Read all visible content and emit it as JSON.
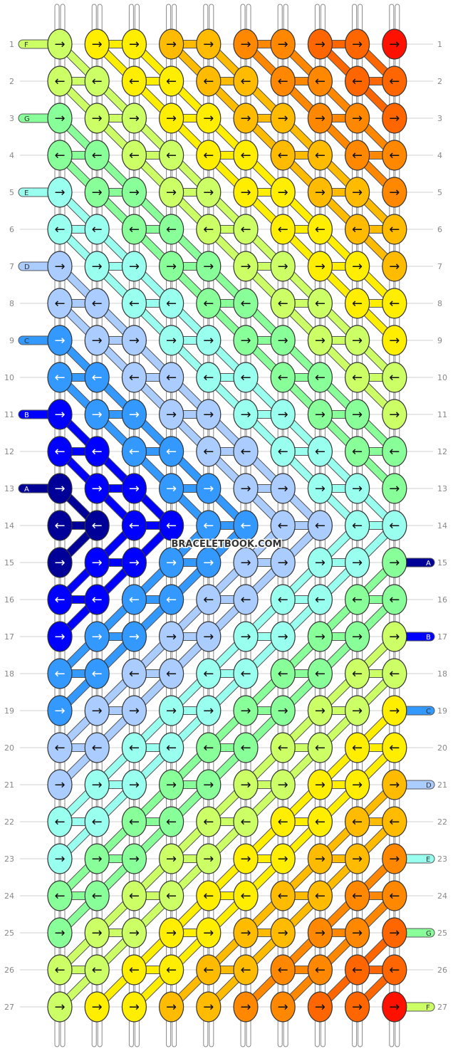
{
  "watermark": "BRACELETBOOK.COM",
  "row_labels": [
    "1",
    "2",
    "3",
    "4",
    "5",
    "6",
    "7",
    "8",
    "9",
    "10",
    "11",
    "12",
    "13",
    "14",
    "15",
    "16",
    "17",
    "18",
    "19",
    "20",
    "21",
    "22",
    "23",
    "24",
    "25",
    "26",
    "27"
  ],
  "string_labels": {
    "left": [
      {
        "row": 1,
        "text": "F",
        "color": "#ccff66"
      },
      {
        "row": 3,
        "text": "G",
        "color": "#88ff99"
      },
      {
        "row": 5,
        "text": "E",
        "color": "#99ffee"
      },
      {
        "row": 7,
        "text": "D",
        "color": "#aaccff"
      },
      {
        "row": 9,
        "text": "C",
        "color": "#3399ff"
      },
      {
        "row": 11,
        "text": "B",
        "color": "#0000ff"
      },
      {
        "row": 13,
        "text": "A",
        "color": "#000099"
      }
    ],
    "right": [
      {
        "row": 15,
        "text": "A",
        "color": "#000099"
      },
      {
        "row": 17,
        "text": "B",
        "color": "#0000ff"
      },
      {
        "row": 19,
        "text": "C",
        "color": "#3399ff"
      },
      {
        "row": 21,
        "text": "D",
        "color": "#aaccff"
      },
      {
        "row": 23,
        "text": "E",
        "color": "#99ffee"
      },
      {
        "row": 25,
        "text": "G",
        "color": "#88ff99"
      },
      {
        "row": 27,
        "text": "F",
        "color": "#ccff66"
      }
    ]
  },
  "palette": {
    "A": "#000099",
    "B": "#0000ff",
    "C": "#3399ff",
    "D": "#aaccff",
    "E": "#99ffee",
    "G": "#88ff99",
    "F": "#ccff66",
    "Y": "#ffee00",
    "O": "#ffbb00",
    "R": "#ff8800",
    "S": "#ff6600",
    "X": "#ff1100"
  },
  "knots": {
    "columns": 10,
    "rows": [
      {
        "row": 1,
        "arrow": "→",
        "colors": [
          "F",
          "Y",
          "Y",
          "O",
          "O",
          "R",
          "R",
          "S",
          "S",
          "X"
        ]
      },
      {
        "row": 2,
        "arrow": "←",
        "colors": [
          "F",
          "F",
          "Y",
          "Y",
          "O",
          "O",
          "R",
          "R",
          "S",
          "S"
        ]
      },
      {
        "row": 3,
        "arrow": "→",
        "colors": [
          "G",
          "F",
          "F",
          "Y",
          "Y",
          "O",
          "O",
          "R",
          "R",
          "S"
        ]
      },
      {
        "row": 4,
        "arrow": "←",
        "colors": [
          "G",
          "G",
          "F",
          "F",
          "Y",
          "Y",
          "O",
          "O",
          "R",
          "R"
        ]
      },
      {
        "row": 5,
        "arrow": "→",
        "colors": [
          "E",
          "G",
          "G",
          "F",
          "F",
          "Y",
          "Y",
          "O",
          "O",
          "R"
        ]
      },
      {
        "row": 6,
        "arrow": "←",
        "colors": [
          "E",
          "E",
          "G",
          "G",
          "F",
          "F",
          "Y",
          "Y",
          "O",
          "O"
        ]
      },
      {
        "row": 7,
        "arrow": "→",
        "colors": [
          "D",
          "E",
          "E",
          "G",
          "G",
          "F",
          "F",
          "Y",
          "Y",
          "O"
        ]
      },
      {
        "row": 8,
        "arrow": "←",
        "colors": [
          "D",
          "D",
          "E",
          "E",
          "G",
          "G",
          "F",
          "F",
          "Y",
          "Y"
        ]
      },
      {
        "row": 9,
        "arrow": "→",
        "colors": [
          "C",
          "D",
          "D",
          "E",
          "E",
          "G",
          "G",
          "F",
          "F",
          "Y"
        ]
      },
      {
        "row": 10,
        "arrow": "←",
        "colors": [
          "C",
          "C",
          "D",
          "D",
          "E",
          "E",
          "G",
          "G",
          "F",
          "F"
        ]
      },
      {
        "row": 11,
        "arrow": "→",
        "colors": [
          "B",
          "C",
          "C",
          "D",
          "D",
          "E",
          "E",
          "G",
          "G",
          "F"
        ]
      },
      {
        "row": 12,
        "arrow": "←",
        "colors": [
          "B",
          "B",
          "C",
          "C",
          "D",
          "D",
          "E",
          "E",
          "G",
          "G"
        ]
      },
      {
        "row": 13,
        "arrow": "→",
        "colors": [
          "A",
          "B",
          "B",
          "C",
          "C",
          "D",
          "D",
          "E",
          "E",
          "G"
        ]
      },
      {
        "row": 14,
        "arrow": "←",
        "colors": [
          "A",
          "A",
          "B",
          "B",
          "C",
          "C",
          "D",
          "D",
          "E",
          "E"
        ]
      },
      {
        "row": 15,
        "arrow": "→",
        "colors": [
          "A",
          "B",
          "B",
          "C",
          "C",
          "D",
          "D",
          "E",
          "E",
          "G"
        ]
      },
      {
        "row": 16,
        "arrow": "←",
        "colors": [
          "B",
          "B",
          "C",
          "C",
          "D",
          "D",
          "E",
          "E",
          "G",
          "G"
        ]
      },
      {
        "row": 17,
        "arrow": "→",
        "colors": [
          "B",
          "C",
          "C",
          "D",
          "D",
          "E",
          "E",
          "G",
          "G",
          "F"
        ]
      },
      {
        "row": 18,
        "arrow": "←",
        "colors": [
          "C",
          "C",
          "D",
          "D",
          "E",
          "E",
          "G",
          "G",
          "F",
          "F"
        ]
      },
      {
        "row": 19,
        "arrow": "→",
        "colors": [
          "C",
          "D",
          "D",
          "E",
          "E",
          "G",
          "G",
          "F",
          "F",
          "Y"
        ]
      },
      {
        "row": 20,
        "arrow": "←",
        "colors": [
          "D",
          "D",
          "E",
          "E",
          "G",
          "G",
          "F",
          "F",
          "Y",
          "Y"
        ]
      },
      {
        "row": 21,
        "arrow": "→",
        "colors": [
          "D",
          "E",
          "E",
          "G",
          "G",
          "F",
          "F",
          "Y",
          "Y",
          "O"
        ]
      },
      {
        "row": 22,
        "arrow": "←",
        "colors": [
          "E",
          "E",
          "G",
          "G",
          "F",
          "F",
          "Y",
          "Y",
          "O",
          "O"
        ]
      },
      {
        "row": 23,
        "arrow": "→",
        "colors": [
          "E",
          "G",
          "G",
          "F",
          "F",
          "Y",
          "Y",
          "O",
          "O",
          "R"
        ]
      },
      {
        "row": 24,
        "arrow": "←",
        "colors": [
          "G",
          "G",
          "F",
          "F",
          "Y",
          "Y",
          "O",
          "O",
          "R",
          "R"
        ]
      },
      {
        "row": 25,
        "arrow": "→",
        "colors": [
          "G",
          "F",
          "F",
          "Y",
          "Y",
          "O",
          "O",
          "R",
          "R",
          "S"
        ]
      },
      {
        "row": 26,
        "arrow": "←",
        "colors": [
          "F",
          "F",
          "Y",
          "Y",
          "O",
          "O",
          "R",
          "R",
          "S",
          "S"
        ]
      },
      {
        "row": 27,
        "arrow": "→",
        "colors": [
          "F",
          "Y",
          "Y",
          "O",
          "O",
          "R",
          "R",
          "S",
          "S",
          "X"
        ]
      }
    ]
  }
}
